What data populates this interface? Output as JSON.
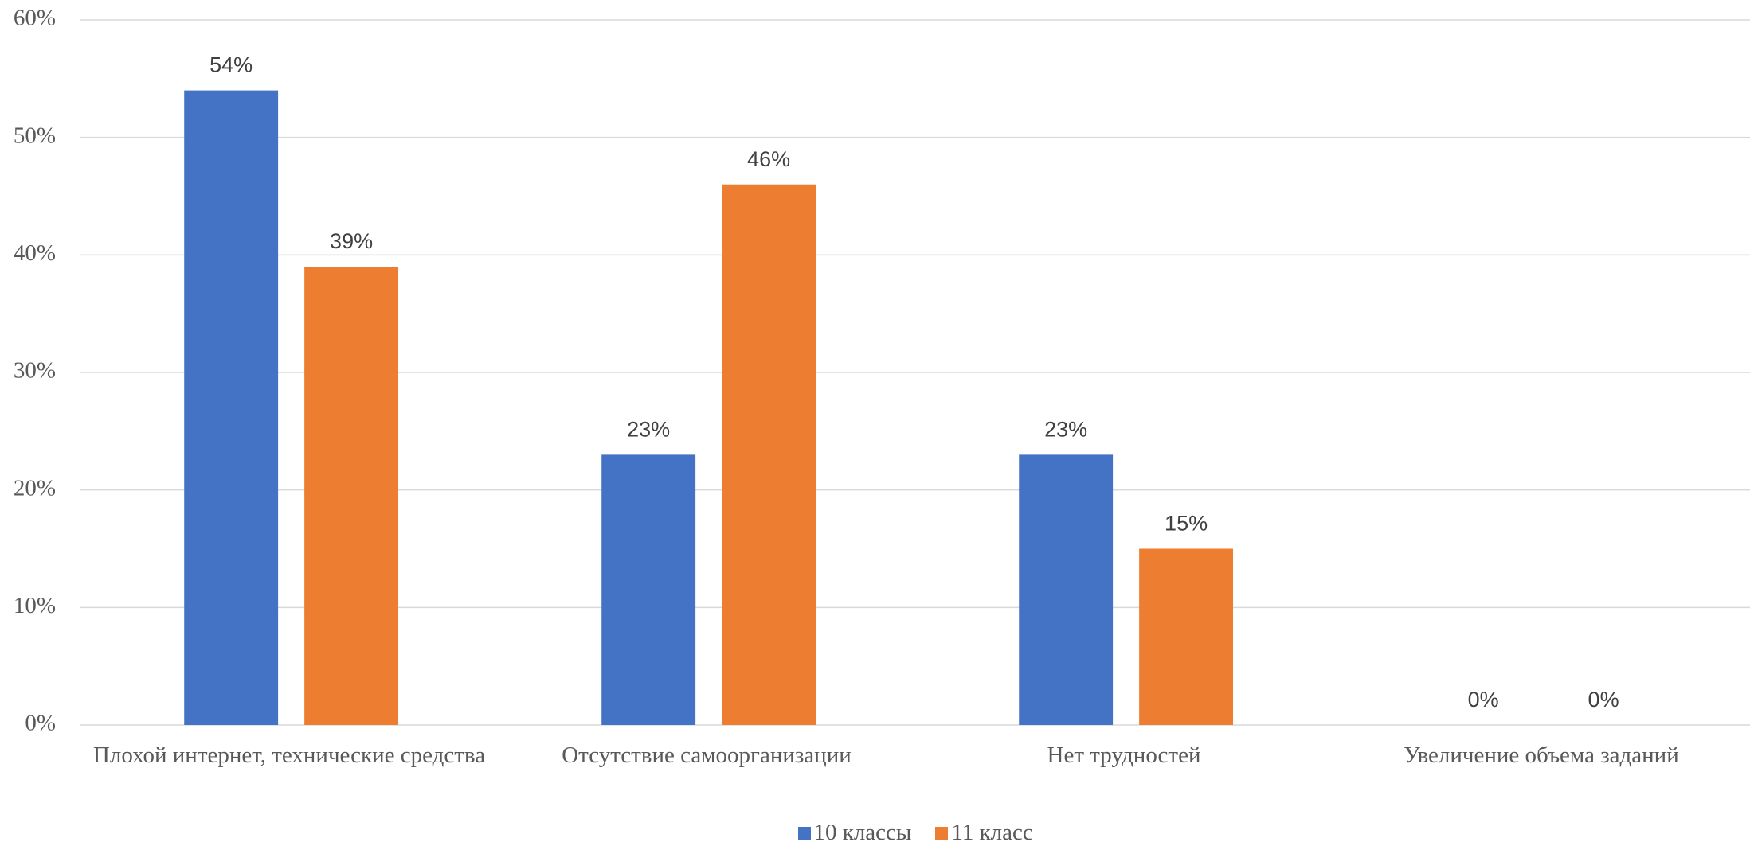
{
  "chart_data": {
    "type": "bar",
    "categories": [
      "Плохой интернет, технические средства",
      "Отсутствие самоорганизации",
      "Нет трудностей",
      "Увеличение объема заданий"
    ],
    "series": [
      {
        "name": "10 классы",
        "color": "#4472c4",
        "values": [
          54,
          23,
          23,
          0
        ],
        "value_labels": [
          "54%",
          "23%",
          "23%",
          "0%"
        ]
      },
      {
        "name": "11 класс",
        "color": "#ed7d31",
        "values": [
          39,
          46,
          15,
          0
        ],
        "value_labels": [
          "39%",
          "46%",
          "15%",
          "0%"
        ]
      }
    ],
    "ylim": [
      0,
      60
    ],
    "yticks": [
      {
        "value": 0,
        "label": "0%"
      },
      {
        "value": 10,
        "label": "10%"
      },
      {
        "value": 20,
        "label": "20%"
      },
      {
        "value": 30,
        "label": "30%"
      },
      {
        "value": 40,
        "label": "40%"
      },
      {
        "value": 50,
        "label": "50%"
      },
      {
        "value": 60,
        "label": "60%"
      }
    ],
    "grid": true,
    "legend": "bottom"
  }
}
